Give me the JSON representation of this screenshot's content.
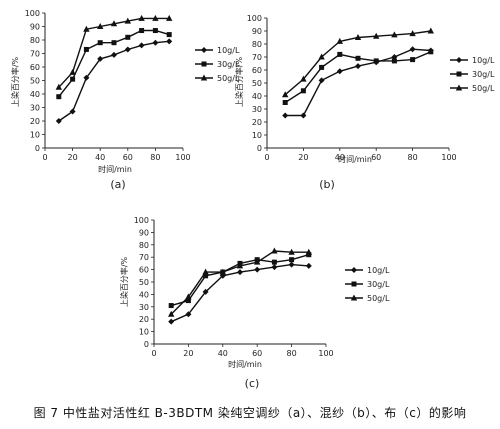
{
  "caption": "图 7 中性盐对活性红 B-3BDTM 染纯空调纱（a）、混纱（b）、布（c）的影响",
  "chart_data": [
    {
      "type": "line",
      "panel_label": "(a)",
      "xlabel": "时间/min",
      "ylabel": "上染百分率/%",
      "xlim": [
        0,
        100
      ],
      "ylim": [
        0,
        100
      ],
      "xticks": [
        "0",
        "20",
        "40",
        "60",
        "80",
        "100"
      ],
      "yticks": [
        "0",
        "10",
        "20",
        "30",
        "40",
        "50",
        "60",
        "70",
        "80",
        "90",
        "100"
      ],
      "legend_position": "right",
      "x": [
        10,
        20,
        30,
        40,
        50,
        60,
        70,
        80,
        90
      ],
      "series": [
        {
          "name": "10g/L",
          "values": [
            20,
            27,
            52,
            66,
            69,
            73,
            76,
            78,
            79
          ]
        },
        {
          "name": "30g/L",
          "values": [
            38,
            51,
            73,
            78,
            78,
            82,
            87,
            87,
            84
          ]
        },
        {
          "name": "50g/L",
          "values": [
            45,
            56,
            88,
            90,
            92,
            94,
            96,
            96,
            96
          ]
        }
      ]
    },
    {
      "type": "line",
      "panel_label": "(b)",
      "xlabel": "时间/min",
      "ylabel": "上染百分率/%",
      "xlim": [
        0,
        100
      ],
      "ylim": [
        0,
        100
      ],
      "xticks": [
        "0",
        "20",
        "40",
        "60",
        "80",
        "100"
      ],
      "yticks": [
        "0",
        "10",
        "20",
        "30",
        "40",
        "50",
        "60",
        "70",
        "80",
        "90",
        "100"
      ],
      "legend_position": "right",
      "x": [
        10,
        20,
        30,
        40,
        50,
        60,
        70,
        80,
        90
      ],
      "series": [
        {
          "name": "10g/L",
          "values": [
            25,
            25,
            52,
            59,
            63,
            66,
            70,
            76,
            75
          ]
        },
        {
          "name": "30g/L",
          "values": [
            35,
            44,
            62,
            72,
            69,
            67,
            67,
            68,
            74
          ]
        },
        {
          "name": "50g/L",
          "values": [
            41,
            53,
            70,
            82,
            85,
            86,
            87,
            88,
            90
          ]
        }
      ]
    },
    {
      "type": "line",
      "panel_label": "(c)",
      "xlabel": "时间/min",
      "ylabel": "上染百分率/%",
      "xlim": [
        0,
        100
      ],
      "ylim": [
        0,
        100
      ],
      "xticks": [
        "0",
        "20",
        "40",
        "60",
        "80",
        "100"
      ],
      "yticks": [
        "0",
        "10",
        "20",
        "30",
        "40",
        "50",
        "60",
        "70",
        "80",
        "90",
        "100"
      ],
      "legend_position": "right",
      "x": [
        10,
        20,
        30,
        40,
        50,
        60,
        70,
        80,
        90
      ],
      "series": [
        {
          "name": "10g/L",
          "values": [
            18,
            24,
            42,
            55,
            58,
            60,
            62,
            64,
            63
          ]
        },
        {
          "name": "30g/L",
          "values": [
            31,
            35,
            55,
            58,
            65,
            68,
            66,
            68,
            72
          ]
        },
        {
          "name": "50g/L",
          "values": [
            24,
            38,
            58,
            58,
            63,
            66,
            75,
            74,
            74
          ]
        }
      ]
    }
  ]
}
